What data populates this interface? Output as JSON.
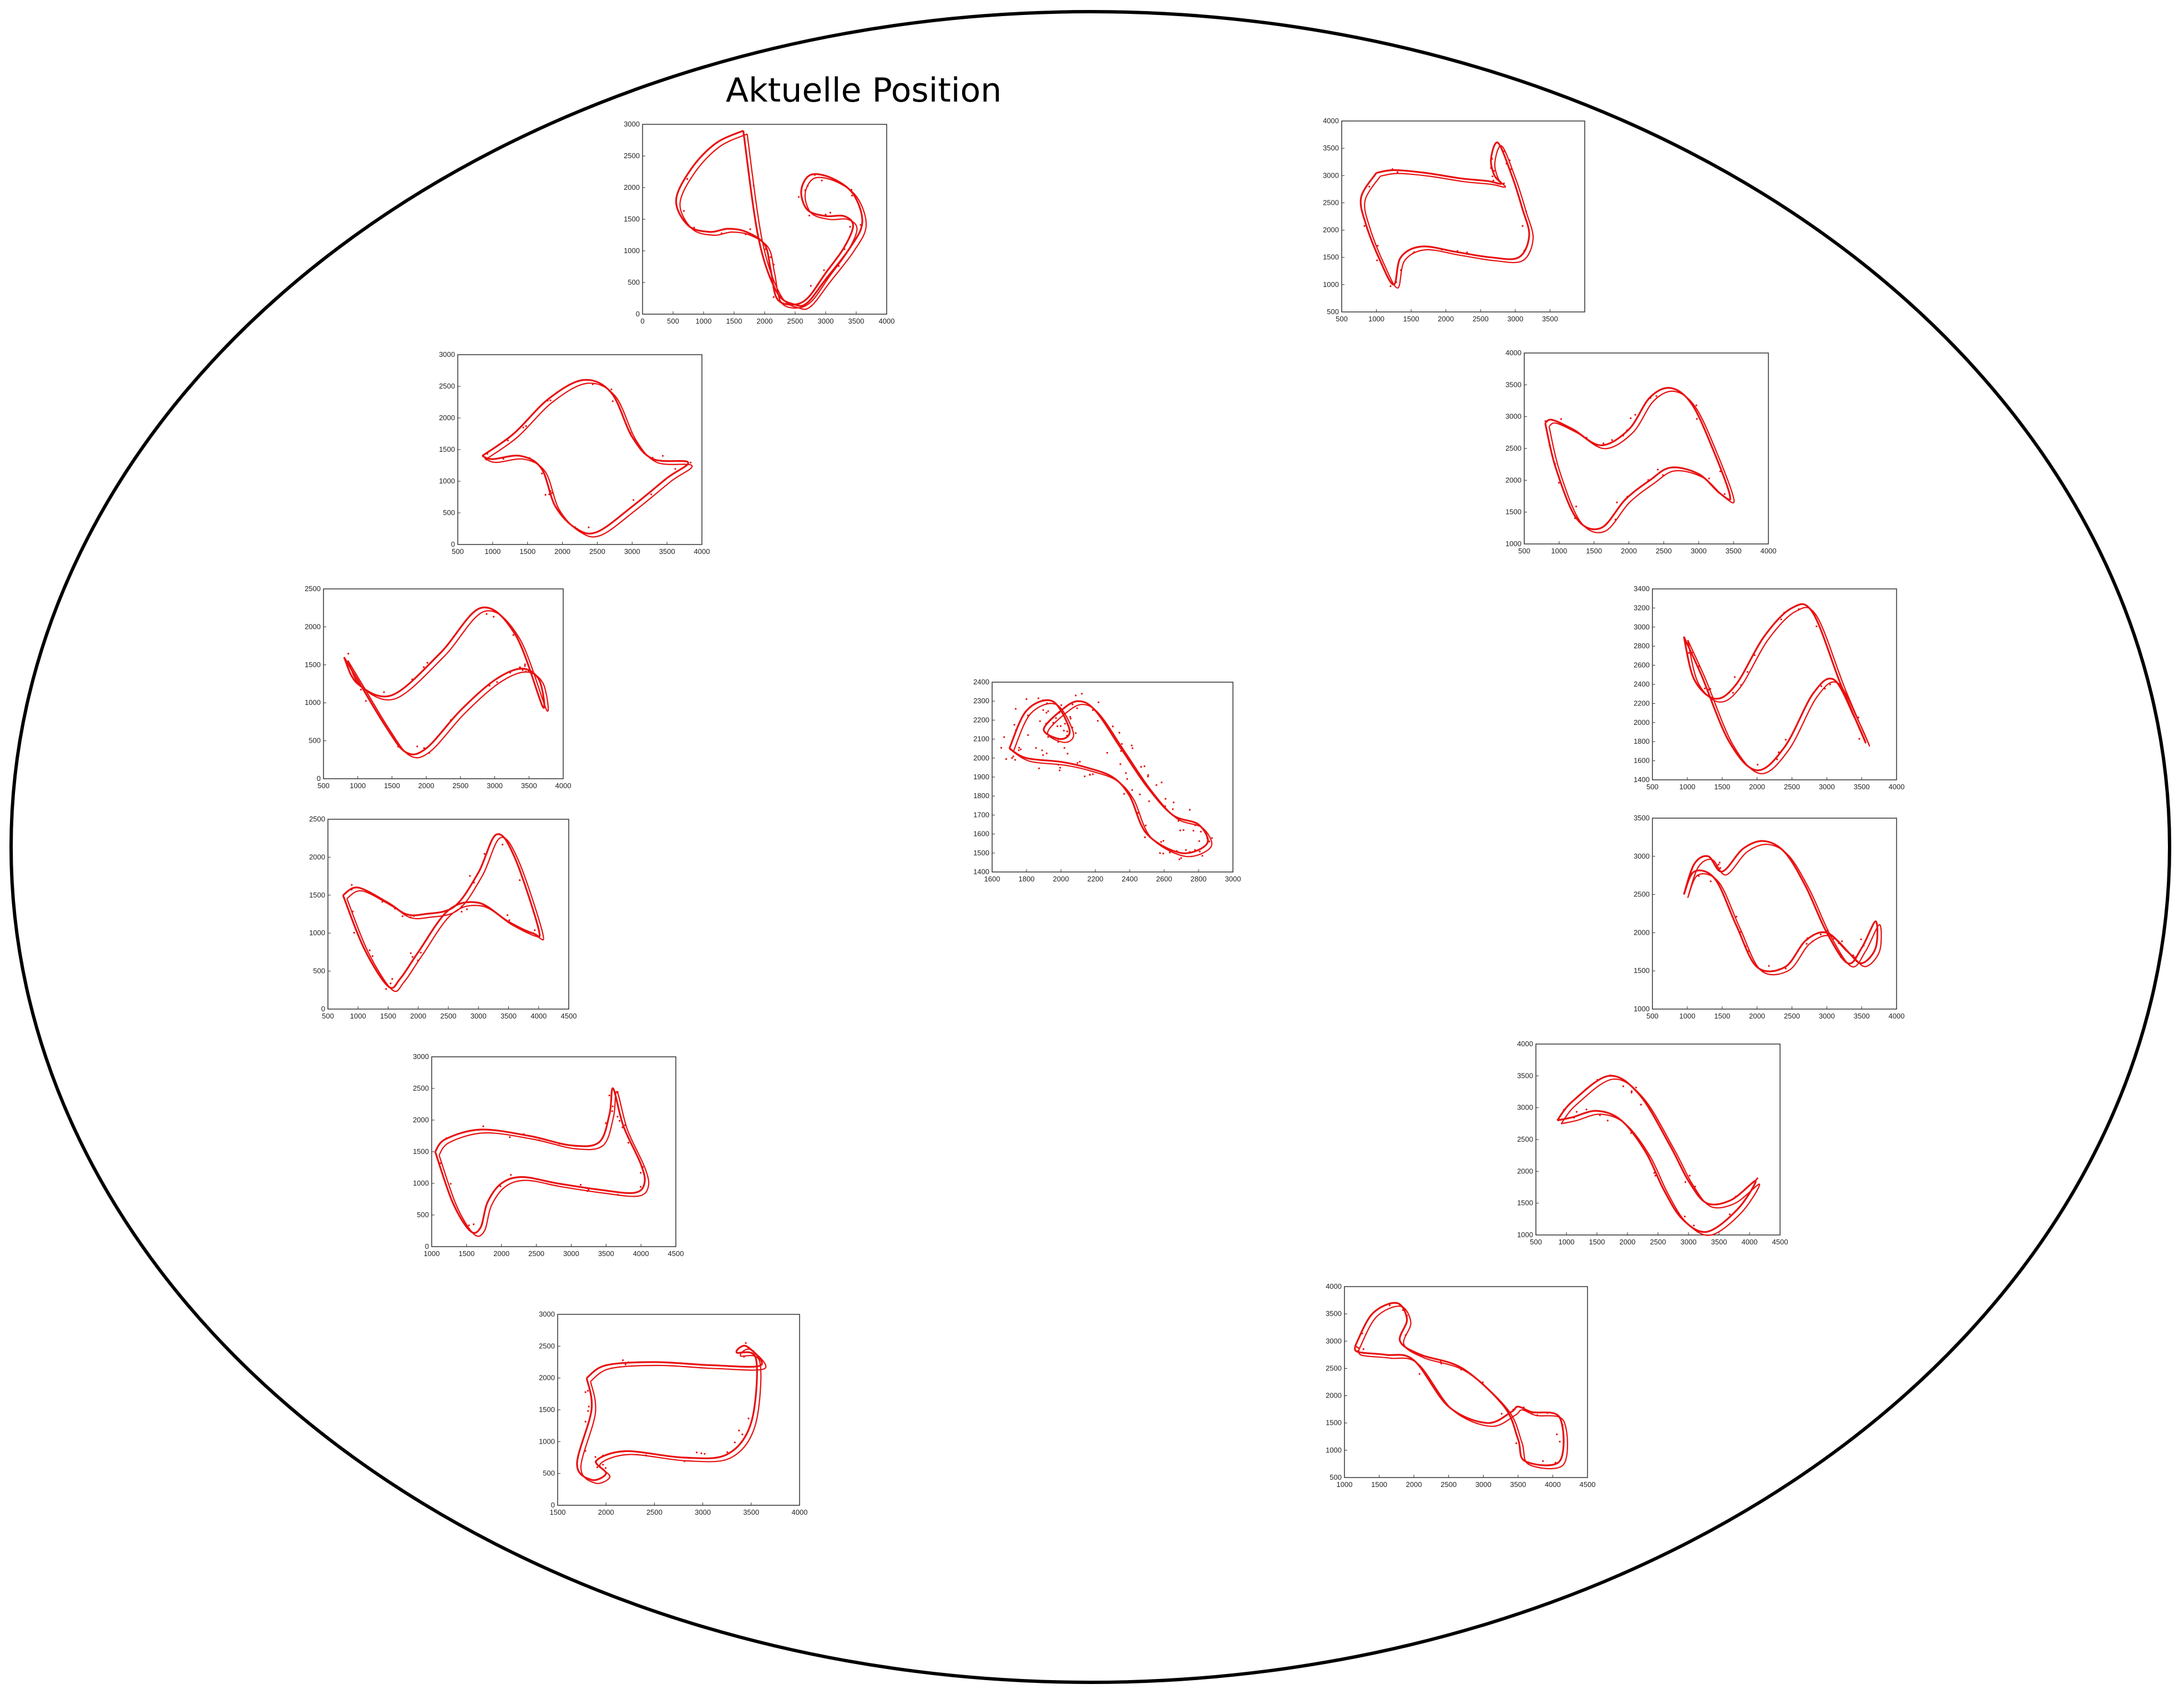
{
  "title": "Aktuelle Position",
  "colors": {
    "trace": "#e81010",
    "axes": "#333333",
    "outline": "#000000"
  },
  "chart_data": [
    {
      "type": "line",
      "xlim": [
        0,
        4000
      ],
      "ylim": [
        0,
        3000
      ],
      "xticks": [
        0,
        500,
        1000,
        1500,
        2000,
        2500,
        3000,
        3500,
        4000
      ],
      "yticks": [
        0,
        500,
        1000,
        1500,
        2000,
        2500,
        3000
      ],
      "x": [
        1650,
        1200,
        800,
        550,
        750,
        1100,
        1400,
        1700,
        2000,
        2100,
        2200,
        2450,
        2700,
        3000,
        3300,
        3450,
        3300,
        3000,
        2700,
        2600,
        2750,
        3100,
        3450,
        3600,
        3400,
        3000,
        2700,
        2500,
        2200,
        1900,
        1650
      ],
      "y": [
        2900,
        2700,
        2300,
        1800,
        1400,
        1300,
        1350,
        1300,
        1100,
        700,
        250,
        150,
        250,
        650,
        1050,
        1400,
        1550,
        1550,
        1650,
        1950,
        2200,
        2150,
        1900,
        1450,
        1050,
        550,
        180,
        150,
        350,
        1200,
        2900
      ]
    },
    {
      "type": "line",
      "xlim": [
        500,
        4000
      ],
      "ylim": [
        500,
        4000
      ],
      "xticks": [
        500,
        1000,
        1500,
        2000,
        2500,
        3000,
        3500
      ],
      "yticks": [
        500,
        1000,
        1500,
        2000,
        2500,
        3000,
        3500,
        4000
      ],
      "x": [
        1000,
        780,
        850,
        1050,
        1250,
        1350,
        1650,
        2150,
        2650,
        3050,
        3200,
        3100,
        2950,
        2750,
        2650,
        2700,
        2800,
        2600,
        2200,
        1700,
        1250,
        1000
      ],
      "y": [
        3050,
        2600,
        2100,
        1450,
        1000,
        1500,
        1700,
        1600,
        1500,
        1500,
        1900,
        2400,
        3000,
        3600,
        3300,
        3000,
        2850,
        2900,
        2950,
        3050,
        3100,
        3050
      ]
    },
    {
      "type": "line",
      "xlim": [
        500,
        4000
      ],
      "ylim": [
        0,
        3000
      ],
      "xticks": [
        500,
        1000,
        1500,
        2000,
        2500,
        3000,
        3500,
        4000
      ],
      "yticks": [
        0,
        500,
        1000,
        1500,
        2000,
        2500,
        3000
      ],
      "x": [
        850,
        1300,
        1800,
        2300,
        2700,
        3000,
        3300,
        3800,
        3500,
        3000,
        2500,
        2200,
        1900,
        1700,
        1400,
        1000,
        850
      ],
      "y": [
        1400,
        1750,
        2300,
        2600,
        2400,
        1700,
        1350,
        1300,
        1050,
        600,
        200,
        250,
        600,
        1200,
        1400,
        1350,
        1400
      ]
    },
    {
      "type": "line",
      "xlim": [
        500,
        4000
      ],
      "ylim": [
        1000,
        4000
      ],
      "xticks": [
        500,
        1000,
        1500,
        2000,
        2500,
        3000,
        3500,
        4000
      ],
      "yticks": [
        1000,
        1500,
        2000,
        2500,
        3000,
        3500,
        4000
      ],
      "x": [
        800,
        900,
        1200,
        1600,
        2000,
        2300,
        2600,
        2900,
        3200,
        3450,
        3300,
        3000,
        2600,
        2300,
        1950,
        1600,
        1250,
        950,
        800
      ],
      "y": [
        2900,
        2950,
        2800,
        2550,
        2800,
        3300,
        3450,
        3200,
        2500,
        1750,
        1800,
        2100,
        2200,
        2000,
        1700,
        1250,
        1400,
        2200,
        2900
      ]
    },
    {
      "type": "line",
      "xlim": [
        500,
        4000
      ],
      "ylim": [
        0,
        2500
      ],
      "xticks": [
        500,
        1000,
        1500,
        2000,
        2500,
        3000,
        3500,
        4000
      ],
      "yticks": [
        0,
        500,
        1000,
        1500,
        2000,
        2500
      ],
      "x": [
        800,
        1000,
        1500,
        2200,
        2800,
        3300,
        3700,
        3650,
        3400,
        3000,
        2500,
        2000,
        1700,
        1400,
        1000,
        800
      ],
      "y": [
        1600,
        1250,
        1100,
        1650,
        2250,
        1900,
        950,
        1300,
        1450,
        1300,
        900,
        400,
        350,
        700,
        1300,
        1600
      ]
    },
    {
      "type": "line",
      "xlim": [
        500,
        4000
      ],
      "ylim": [
        1400,
        3400
      ],
      "xticks": [
        500,
        1000,
        1500,
        2000,
        2500,
        3000,
        3500,
        4000
      ],
      "yticks": [
        1400,
        1600,
        1800,
        2000,
        2200,
        2400,
        2600,
        2800,
        3000,
        3200,
        3400
      ],
      "x": [
        950,
        1100,
        1400,
        1700,
        2100,
        2500,
        2800,
        3200,
        3550,
        3400,
        3100,
        2800,
        2400,
        2000,
        1600,
        1200,
        950
      ],
      "y": [
        2900,
        2450,
        2250,
        2400,
        2900,
        3200,
        3150,
        2400,
        1800,
        2050,
        2450,
        2300,
        1750,
        1500,
        1800,
        2500,
        2900
      ]
    },
    {
      "type": "line",
      "xlim": [
        1600,
        3000
      ],
      "ylim": [
        1400,
        2400
      ],
      "xticks": [
        1600,
        1800,
        2000,
        2200,
        2400,
        2600,
        2800,
        3000
      ],
      "yticks": [
        1400,
        1500,
        1600,
        1700,
        1800,
        1900,
        2000,
        2100,
        2200,
        2300,
        2400
      ],
      "x": [
        1700,
        1800,
        1950,
        2050,
        2000,
        1900,
        2000,
        2100,
        2200,
        2350,
        2500,
        2650,
        2800,
        2850,
        2700,
        2500,
        2400,
        2300,
        2150,
        2000,
        1800,
        1700
      ],
      "y": [
        2050,
        2250,
        2300,
        2150,
        2100,
        2150,
        2250,
        2300,
        2250,
        2050,
        1850,
        1700,
        1650,
        1550,
        1500,
        1600,
        1800,
        1900,
        1950,
        1980,
        2000,
        2050
      ]
    },
    {
      "type": "line",
      "xlim": [
        500,
        4500
      ],
      "ylim": [
        0,
        2500
      ],
      "xticks": [
        500,
        1000,
        1500,
        2000,
        2500,
        3000,
        3500,
        4000,
        4500
      ],
      "yticks": [
        0,
        500,
        1000,
        1500,
        2000,
        2500
      ],
      "x": [
        750,
        1000,
        1500,
        1800,
        2100,
        2600,
        3000,
        3300,
        3600,
        4000,
        3900,
        3500,
        3000,
        2500,
        2000,
        1700,
        1500,
        1100,
        750
      ],
      "y": [
        1500,
        1600,
        1400,
        1250,
        1250,
        1350,
        1800,
        2300,
        2000,
        1050,
        1000,
        1150,
        1400,
        1300,
        750,
        400,
        300,
        800,
        1500
      ]
    },
    {
      "type": "line",
      "xlim": [
        500,
        4000
      ],
      "ylim": [
        1000,
        3500
      ],
      "xticks": [
        500,
        1000,
        1500,
        2000,
        2500,
        3000,
        3500,
        4000
      ],
      "yticks": [
        1000,
        1500,
        2000,
        2500,
        3000,
        3500
      ],
      "x": [
        950,
        1100,
        1300,
        1500,
        1800,
        2100,
        2400,
        2700,
        3000,
        3300,
        3500,
        3700,
        3700,
        3500,
        3300,
        3000,
        2700,
        2400,
        2000,
        1700,
        1400,
        1100,
        950
      ],
      "y": [
        2500,
        2900,
        3000,
        2800,
        3100,
        3200,
        3050,
        2600,
        2000,
        1600,
        1800,
        2150,
        1800,
        1600,
        1750,
        2000,
        1900,
        1550,
        1550,
        2100,
        2700,
        2800,
        2500
      ]
    },
    {
      "type": "line",
      "xlim": [
        1000,
        4500
      ],
      "ylim": [
        0,
        3000
      ],
      "xticks": [
        1000,
        1500,
        2000,
        2500,
        3000,
        3500,
        4000,
        4500
      ],
      "yticks": [
        0,
        500,
        1000,
        1500,
        2000,
        2500,
        3000
      ],
      "x": [
        1050,
        1200,
        1700,
        2400,
        3000,
        3400,
        3550,
        3600,
        3750,
        4000,
        4050,
        3900,
        3400,
        2800,
        2300,
        2000,
        1800,
        1700,
        1550,
        1300,
        1050
      ],
      "y": [
        1500,
        1700,
        1850,
        1750,
        1600,
        1650,
        2100,
        2500,
        1900,
        1300,
        1000,
        850,
        900,
        1000,
        1100,
        1000,
        700,
        300,
        250,
        700,
        1500
      ]
    },
    {
      "type": "line",
      "xlim": [
        500,
        4500
      ],
      "ylim": [
        1000,
        4000
      ],
      "xticks": [
        500,
        1000,
        1500,
        2000,
        2500,
        3000,
        3500,
        4000,
        4500
      ],
      "yticks": [
        1000,
        1500,
        2000,
        2500,
        3000,
        3500,
        4000
      ],
      "x": [
        850,
        1100,
        1700,
        2200,
        2700,
        3000,
        3300,
        3700,
        4100,
        3800,
        3300,
        2900,
        2600,
        2300,
        1900,
        1500,
        1100,
        850
      ],
      "y": [
        2800,
        3100,
        3500,
        3200,
        2400,
        1850,
        1500,
        1550,
        1850,
        1400,
        1050,
        1250,
        1700,
        2300,
        2800,
        2950,
        2850,
        2800
      ]
    },
    {
      "type": "line",
      "xlim": [
        1500,
        4000
      ],
      "ylim": [
        0,
        3000
      ],
      "xticks": [
        1500,
        2000,
        2500,
        3000,
        3500,
        4000
      ],
      "yticks": [
        0,
        500,
        1000,
        1500,
        2000,
        2500,
        3000
      ],
      "x": [
        1800,
        2000,
        2500,
        3100,
        3600,
        3450,
        3350,
        3550,
        3500,
        3250,
        2800,
        2200,
        1900,
        2000,
        1850,
        1700,
        1850,
        1800
      ],
      "y": [
        2000,
        2200,
        2250,
        2200,
        2200,
        2500,
        2400,
        2300,
        1300,
        800,
        750,
        850,
        700,
        500,
        400,
        650,
        1500,
        2000
      ]
    },
    {
      "type": "line",
      "xlim": [
        1000,
        4500
      ],
      "ylim": [
        500,
        4000
      ],
      "xticks": [
        1000,
        1500,
        2000,
        2500,
        3000,
        3500,
        4000,
        4500
      ],
      "yticks": [
        500,
        1000,
        1500,
        2000,
        2500,
        3000,
        3500,
        4000
      ],
      "x": [
        1150,
        1400,
        1750,
        1900,
        1800,
        2100,
        2700,
        3300,
        3500,
        3600,
        4100,
        4100,
        3700,
        3500,
        3400,
        3050,
        2500,
        2000,
        1600,
        1200,
        1150
      ],
      "y": [
        2900,
        3500,
        3700,
        3400,
        3000,
        2750,
        2500,
        1800,
        1200,
        800,
        800,
        1600,
        1700,
        1800,
        1700,
        1500,
        1800,
        2650,
        2750,
        2800,
        2900
      ]
    }
  ]
}
